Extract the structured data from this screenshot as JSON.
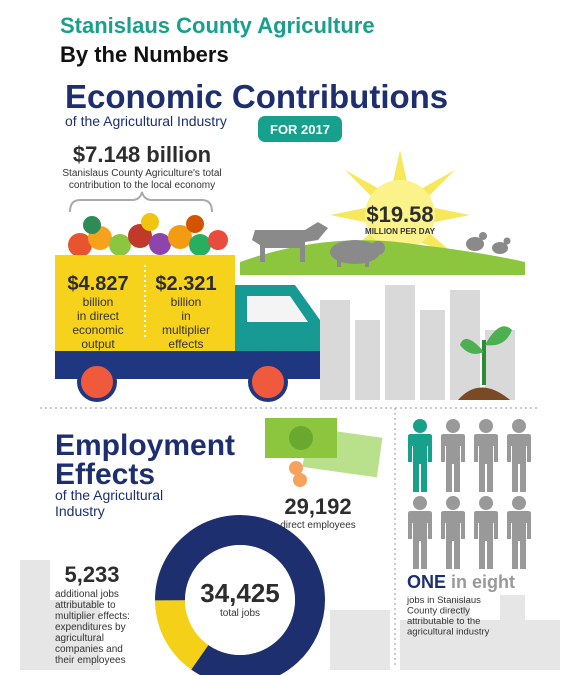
{
  "header": {
    "title": "Stanislaus County Agriculture",
    "subtitle": "By the Numbers"
  },
  "economic": {
    "title": "Economic Contributions",
    "subtitle": "of the Agricultural Industry",
    "badge": "FOR 2017",
    "total": {
      "value": "$7.148 billion",
      "caption": [
        "Stanislaus County Agriculture's total",
        "contribution to the local economy"
      ]
    },
    "direct": {
      "value": "$4.827",
      "caption": [
        "billion",
        "in direct",
        "economic",
        "output"
      ]
    },
    "multiplier": {
      "value": "$2.321",
      "caption": [
        "billion",
        "in",
        "multiplier",
        "effects"
      ]
    },
    "daily": {
      "value": "$19.58",
      "caption": "MILLION PER DAY"
    }
  },
  "employment": {
    "title": [
      "Employment",
      "Effects"
    ],
    "subtitle": [
      "of the Agricultural",
      "Industry"
    ],
    "direct": {
      "value": 29192,
      "label": "29,192",
      "caption": "direct employees",
      "color": "#1d2f6f"
    },
    "additional": {
      "value": 5233,
      "label": "5,233",
      "caption": [
        "additional jobs",
        "attributable to",
        "multiplier effects:",
        "expenditures by",
        "agricultural",
        "companies and",
        "their employees"
      ],
      "color": "#f5d019"
    },
    "total": {
      "value": 34425,
      "label": "34,425",
      "caption": "total jobs"
    },
    "ratio": {
      "emphasis": "ONE",
      "rest": "in eight",
      "caption": [
        "jobs in Stanislaus",
        "County directly",
        "attributable to the",
        "agricultural industry"
      ]
    }
  }
}
